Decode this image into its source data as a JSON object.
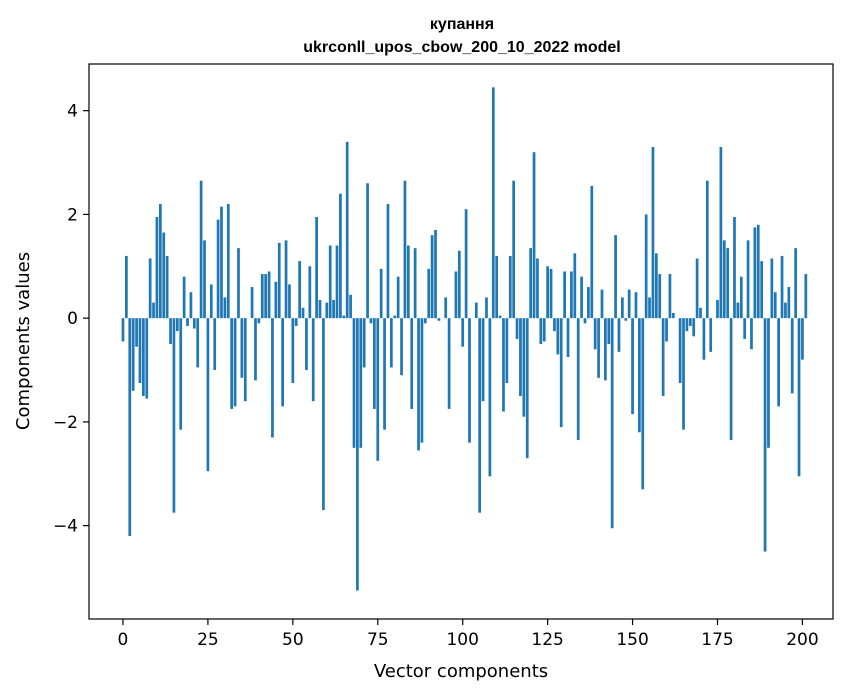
{
  "chart_data": {
    "type": "bar",
    "title_line1": "купання",
    "title_line2": "ukrconll_upos_cbow_200_10_2022 model",
    "xlabel": "Vector components",
    "ylabel": "Components values",
    "xlim": [
      -10,
      209
    ],
    "ylim": [
      -5.8,
      4.9
    ],
    "x_ticks": [
      0,
      25,
      50,
      75,
      100,
      125,
      150,
      175,
      200
    ],
    "x_tick_labels": [
      "0",
      "25",
      "50",
      "75",
      "100",
      "125",
      "150",
      "175",
      "200"
    ],
    "y_ticks": [
      -4,
      -2,
      0,
      2,
      4
    ],
    "y_tick_labels": [
      "−4",
      "−2",
      "0",
      "2",
      "4"
    ],
    "grid": false,
    "bar_color": "#1f77b4",
    "values": [
      -0.45,
      1.2,
      -4.2,
      -1.4,
      -0.55,
      -1.25,
      -1.5,
      -1.55,
      1.15,
      0.3,
      1.95,
      2.2,
      1.65,
      1.2,
      -0.5,
      -3.75,
      -0.25,
      -2.15,
      0.8,
      -0.15,
      0.5,
      -0.2,
      -0.95,
      2.65,
      1.5,
      -2.95,
      0.65,
      -1,
      1.9,
      2.15,
      0.4,
      2.2,
      -1.75,
      -1.7,
      1.35,
      -1.15,
      -1.6,
      0,
      0.6,
      -1.2,
      -0.1,
      0.85,
      0.85,
      0.9,
      -2.3,
      0.7,
      1.45,
      -1.7,
      1.5,
      0.65,
      -1.25,
      -0.15,
      1.1,
      0.2,
      -1,
      1,
      -1.6,
      1.95,
      0.35,
      -3.7,
      0.3,
      1.4,
      0.35,
      1.4,
      2.4,
      0.05,
      3.4,
      0.45,
      -2.5,
      -5.25,
      -2.5,
      -0.95,
      2.6,
      -0.1,
      -1.75,
      -2.75,
      0.95,
      -2.15,
      2.2,
      -0.95,
      0.05,
      0.8,
      -1.1,
      2.65,
      1.4,
      -1.75,
      1.35,
      -2.55,
      -2.4,
      -0.1,
      0.95,
      1.6,
      1.7,
      -0.05,
      0,
      0.4,
      -1.75,
      0,
      0.9,
      1.3,
      -0.55,
      2.1,
      -2.4,
      0,
      0.3,
      -3.75,
      -1.6,
      0.4,
      -3.05,
      4.45,
      1.2,
      0.05,
      -1.8,
      -1.25,
      1.2,
      2.65,
      -0.4,
      -1.5,
      -1.9,
      -2.7,
      1.35,
      3.2,
      1.15,
      -0.5,
      -0.45,
      1,
      0.95,
      -0.25,
      -0.7,
      -2.1,
      0.9,
      -0.75,
      0.9,
      1.25,
      -2.35,
      0.8,
      -0.1,
      0.6,
      2.55,
      -0.6,
      -1.15,
      0.55,
      -1.2,
      -0.5,
      -4.05,
      1.6,
      -0.65,
      0.4,
      -0.05,
      0.55,
      -1.85,
      0.5,
      -2.2,
      -3.3,
      2,
      0.4,
      3.3,
      1.25,
      0.85,
      -1.5,
      -0.45,
      0.85,
      0.1,
      0,
      -1.25,
      -2.15,
      -0.25,
      -0.15,
      -0.35,
      1.15,
      0.2,
      -0.8,
      2.65,
      -0.65,
      0,
      0.35,
      3.3,
      1.5,
      1.35,
      -2.35,
      1.95,
      0.3,
      0.8,
      -0.4,
      1.5,
      -0.6,
      1.75,
      1.8,
      1.1,
      -4.5,
      -2.5,
      1.15,
      0.5,
      -1.7,
      1.2,
      0.3,
      0.6,
      -1.45,
      1.35,
      -3.05,
      -0.8,
      0.85
    ]
  }
}
